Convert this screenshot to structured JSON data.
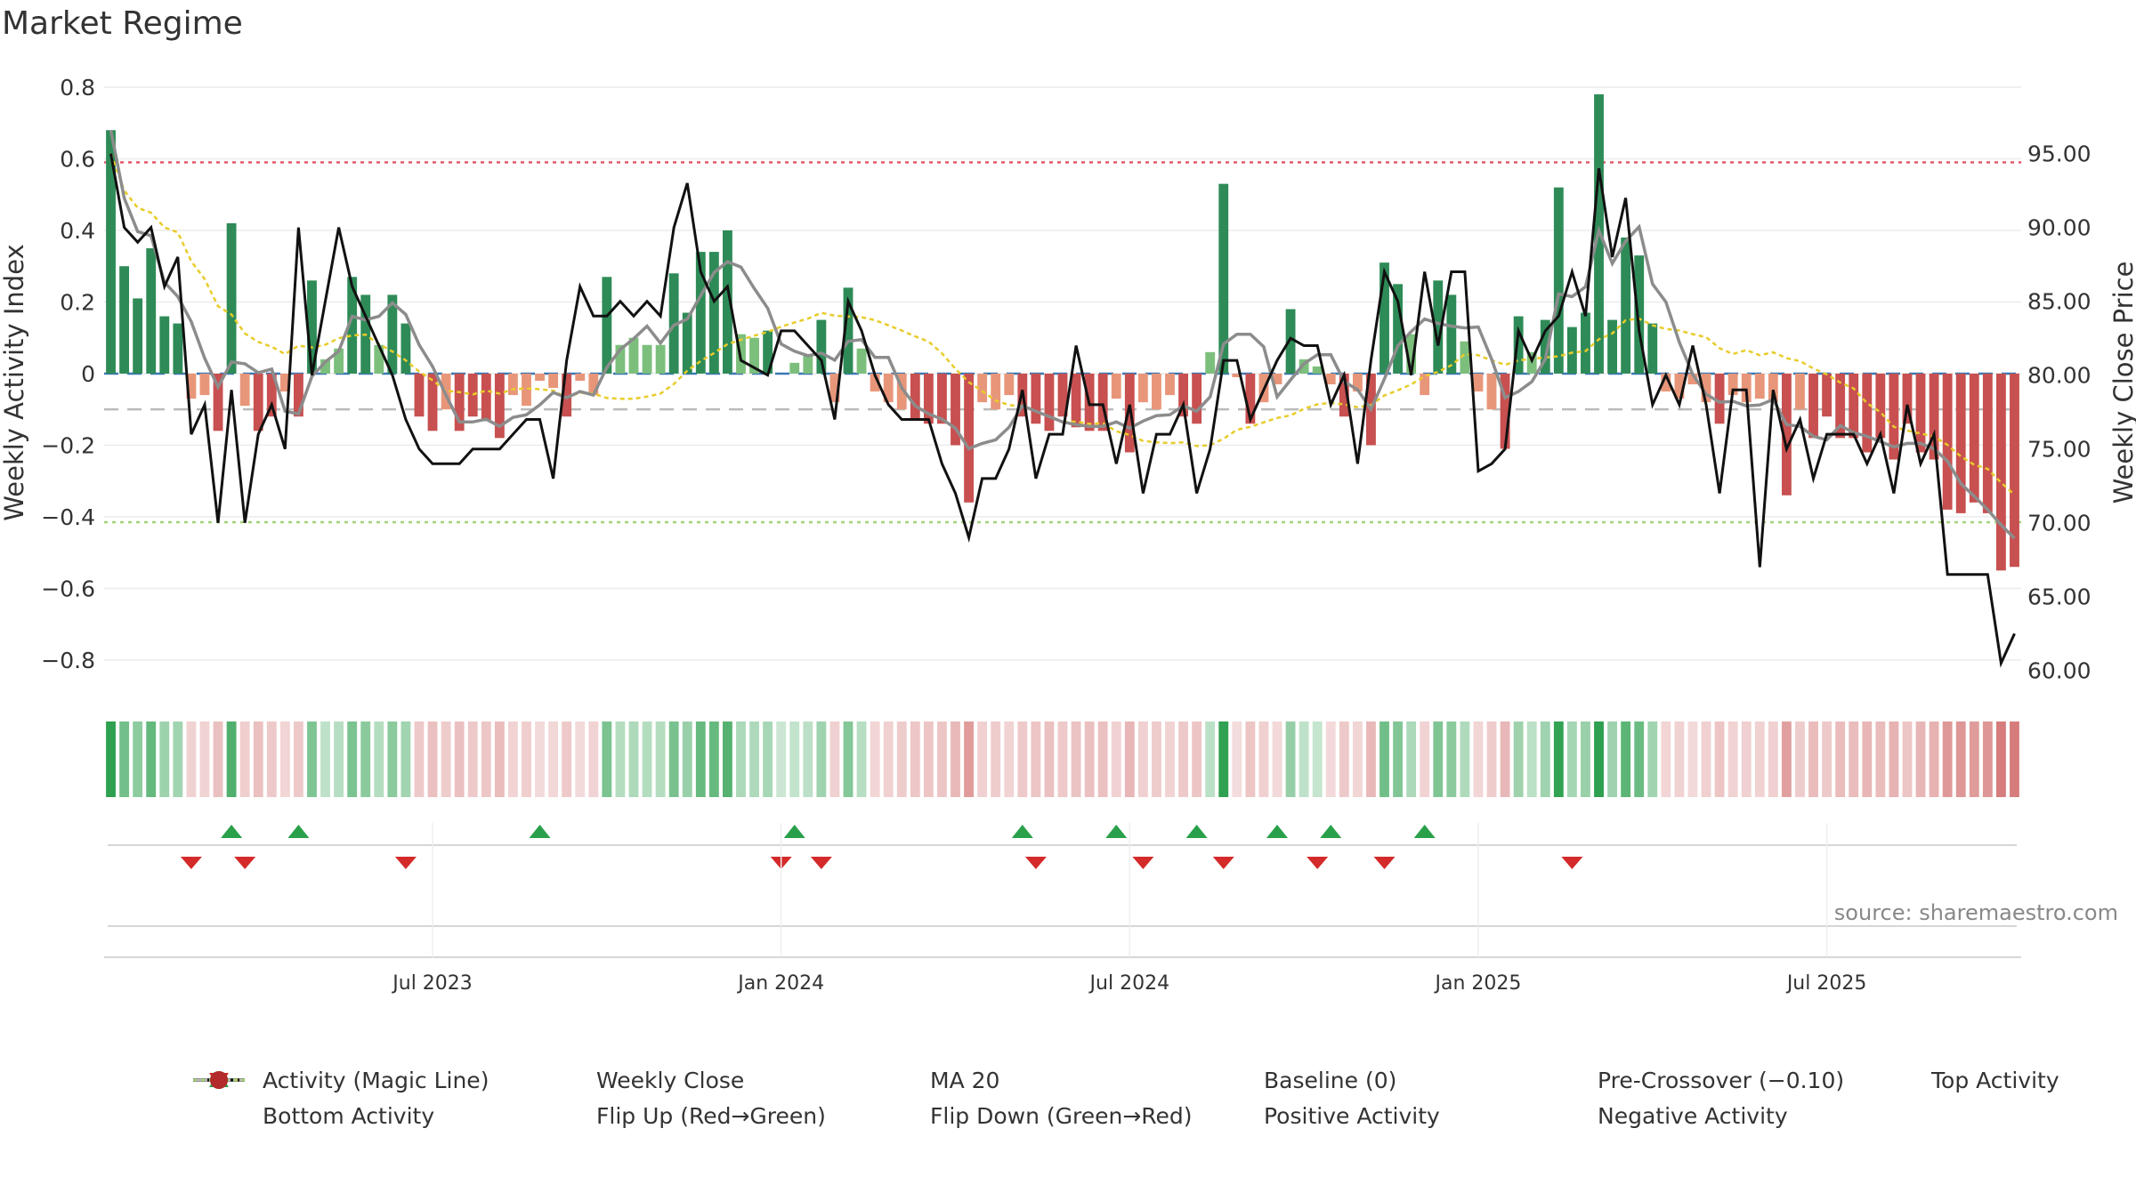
{
  "title": "Market Regime",
  "source_text": "source: sharemaestro.com",
  "colors": {
    "green_dark": "#2e8b57",
    "green_light": "#7cbf7c",
    "red_dark": "#c85050",
    "red_light": "#e8967a",
    "close": "#111111",
    "magic": "#8c8c8c",
    "ma20": "#e8cc2a",
    "baseline": "#3b78b4",
    "pre": "#bbbbbb",
    "top": "#e05a6a",
    "bottom": "#a6d27a",
    "flip_up": "#2aa04a",
    "flip_down": "#d42a2a"
  },
  "chart_data": {
    "type": "bar",
    "title": "Market Regime",
    "ylabel": "Weekly Activity Index",
    "y2label": "Weekly Close Price",
    "ylim": [
      -0.85,
      0.8
    ],
    "y2lim": [
      59.5,
      99.5
    ],
    "yticks": [
      "0.8",
      "0.6",
      "0.4",
      "0.2",
      "0",
      "−0.2",
      "−0.4",
      "−0.6",
      "−0.8"
    ],
    "y2ticks": [
      "95.00",
      "90.00",
      "85.00",
      "80.00",
      "75.00",
      "70.00",
      "65.00",
      "60.00"
    ],
    "x_ticks": [
      {
        "label": "Jul 2023",
        "week": 24
      },
      {
        "label": "Jan 2024",
        "week": 50
      },
      {
        "label": "Jul 2024",
        "week": 76
      },
      {
        "label": "Jan 2025",
        "week": 102
      },
      {
        "label": "Jul 2025",
        "week": 128
      }
    ],
    "reference_lines": {
      "baseline": 0,
      "pre_crossover": -0.1,
      "top_activity": 0.59,
      "bottom_activity": -0.415
    },
    "activity": [
      0.68,
      0.3,
      0.21,
      0.35,
      0.16,
      0.14,
      -0.07,
      -0.06,
      -0.16,
      0.42,
      -0.09,
      -0.16,
      -0.12,
      -0.05,
      -0.12,
      0.26,
      0.04,
      0.07,
      0.27,
      0.22,
      0.08,
      0.22,
      0.14,
      -0.12,
      -0.16,
      -0.1,
      -0.16,
      -0.12,
      -0.13,
      -0.18,
      -0.06,
      -0.09,
      -0.02,
      -0.04,
      -0.12,
      -0.02,
      -0.06,
      0.27,
      0.08,
      0.1,
      0.08,
      0.08,
      0.28,
      0.17,
      0.34,
      0.34,
      0.4,
      0.11,
      0.1,
      0.12,
      0.0,
      0.03,
      0.05,
      0.15,
      -0.08,
      0.24,
      0.07,
      -0.05,
      -0.08,
      -0.1,
      -0.13,
      -0.14,
      -0.14,
      -0.2,
      -0.36,
      -0.08,
      -0.1,
      -0.06,
      -0.12,
      -0.14,
      -0.16,
      -0.12,
      -0.15,
      -0.16,
      -0.16,
      -0.07,
      -0.22,
      -0.08,
      -0.1,
      -0.06,
      -0.12,
      -0.14,
      0.06,
      0.53,
      -0.01,
      -0.14,
      -0.08,
      -0.03,
      0.18,
      0.04,
      0.02,
      -0.03,
      -0.12,
      -0.05,
      -0.2,
      0.31,
      0.25,
      0.11,
      -0.06,
      0.26,
      0.22,
      0.09,
      -0.05,
      -0.1,
      -0.21,
      0.16,
      0.06,
      0.15,
      0.52,
      0.13,
      0.17,
      0.78,
      0.15,
      0.38,
      0.33,
      0.14,
      -0.05,
      -0.07,
      -0.03,
      -0.08,
      -0.14,
      -0.06,
      -0.08,
      -0.07,
      -0.08,
      -0.34,
      -0.1,
      -0.18,
      -0.12,
      -0.18,
      -0.18,
      -0.22,
      -0.18,
      -0.24,
      -0.14,
      -0.22,
      -0.24,
      -0.38,
      -0.39,
      -0.36,
      -0.39,
      -0.55,
      -0.54
    ],
    "weekly_close": [
      95.0,
      90.0,
      89.0,
      90.0,
      86.0,
      88.0,
      76.0,
      78.0,
      70.0,
      79.0,
      70.0,
      76.0,
      78.0,
      75.0,
      90.0,
      80.0,
      85.0,
      90.0,
      86.0,
      84.0,
      82.0,
      80.0,
      77.0,
      75.0,
      74.0,
      74.0,
      74.0,
      75.0,
      75.0,
      75.0,
      76.0,
      77.0,
      77.0,
      73.0,
      81.0,
      86.0,
      84.0,
      84.0,
      85.0,
      84.0,
      85.0,
      84.0,
      90.0,
      93.0,
      87.0,
      85.0,
      86.0,
      81.0,
      80.5,
      80.0,
      83.0,
      83.0,
      82.0,
      81.0,
      77.0,
      85.0,
      83.0,
      80.0,
      78.0,
      77.0,
      77.0,
      77.0,
      74.0,
      72.0,
      69.0,
      73.0,
      73.0,
      75.0,
      79.0,
      73.0,
      76.0,
      76.0,
      82.0,
      78.0,
      78.0,
      74.0,
      78.0,
      72.0,
      76.0,
      76.0,
      78.0,
      72.0,
      75.0,
      81.0,
      81.0,
      77.0,
      79.0,
      81.0,
      82.5,
      82.0,
      82.0,
      78.0,
      80.0,
      74.0,
      81.0,
      87.0,
      85.0,
      80.0,
      87.0,
      82.0,
      87.0,
      87.0,
      73.5,
      74.0,
      75.0,
      83.0,
      81.0,
      83.0,
      84.0,
      87.0,
      84.0,
      94.0,
      88.0,
      92.0,
      83.0,
      78.0,
      80.0,
      78.0,
      82.0,
      78.0,
      72.0,
      79.0,
      79.0,
      67.0,
      79.0,
      75.0,
      77.0,
      73.0,
      76.0,
      76.0,
      76.0,
      74.0,
      76.0,
      72.0,
      78.0,
      74.0,
      76.0,
      66.5,
      66.5,
      66.5,
      66.5,
      60.5,
      62.5
    ],
    "flip_up_weeks": [
      9,
      14,
      32,
      51,
      68,
      75,
      81,
      87,
      91,
      98
    ],
    "flip_down_weeks": [
      6,
      10,
      22,
      50,
      53,
      69,
      77,
      83,
      90,
      95,
      109
    ]
  },
  "legend": [
    {
      "label": "Activity (Magic Line)",
      "key": "magic"
    },
    {
      "label": "Weekly Close",
      "key": "close"
    },
    {
      "label": "MA 20",
      "key": "ma20"
    },
    {
      "label": "Baseline (0)",
      "key": "baseline"
    },
    {
      "label": "Pre-Crossover (−0.10)",
      "key": "pre"
    },
    {
      "label": "Top Activity",
      "key": "top"
    },
    {
      "label": "Bottom Activity",
      "key": "bottom"
    },
    {
      "label": "Flip Up (Red→Green)",
      "key": "flip_up"
    },
    {
      "label": "Flip Down (Green→Red)",
      "key": "flip_down"
    },
    {
      "label": "Positive Activity",
      "key": "positive"
    },
    {
      "label": "Negative Activity",
      "key": "negative"
    }
  ]
}
